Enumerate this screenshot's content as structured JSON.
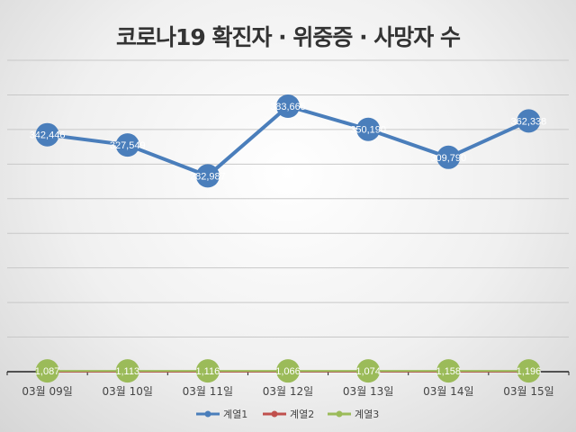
{
  "chart_data": {
    "type": "line",
    "title": "코로나19 확진자 · 위중증 · 사망자 수",
    "categories": [
      "03월 09일",
      "03월 10일",
      "03월 11일",
      "03월 12일",
      "03월 13일",
      "03월 14일",
      "03월 15일"
    ],
    "ylim": [
      0,
      450000
    ],
    "grid": true,
    "legend": "bottom",
    "series": [
      {
        "name": "계열1",
        "color": "#4a7ebb",
        "values": [
          342446,
          327549,
          282987,
          383665,
          350190,
          309790,
          362338
        ],
        "labels": [
          "342,446",
          "327,549",
          "282,987",
          "383,665",
          "350,190",
          "309,790",
          "362,338"
        ]
      },
      {
        "name": "계열2",
        "color": "#c0504d",
        "values": [
          158,
          206,
          229,
          269,
          251,
          200,
          293
        ]
      },
      {
        "name": "계열3",
        "color": "#9bbb59",
        "values": [
          1087,
          1113,
          1116,
          1066,
          1074,
          1158,
          1196
        ],
        "labels": [
          "1,087",
          "1,113",
          "1,116",
          "1,066",
          "1,074",
          "1,158",
          "1,196"
        ]
      }
    ]
  }
}
